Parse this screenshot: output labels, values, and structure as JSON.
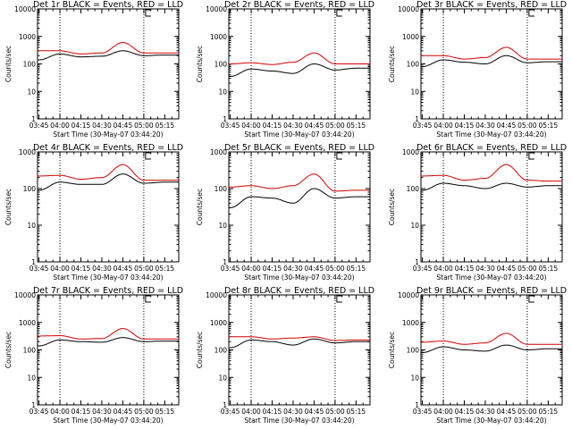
{
  "chart_data": [
    {
      "type": "line",
      "title": "Det 1r BLACK = Events, RED = LLD",
      "xlabel": "Start Time (30-May-07 03:44:20)",
      "ylabel": "Counts/sec",
      "yscale": "log",
      "ylim": [
        1,
        10000
      ],
      "x_ticks": [
        "03:45",
        "04:00",
        "04:15",
        "04:30",
        "04:45",
        "05:00",
        "05:15"
      ],
      "y_ticks": [
        "1",
        "10",
        "100",
        "1000",
        "10000"
      ],
      "markers": [
        "04:00",
        "05:00"
      ],
      "series": [
        {
          "name": "LLD",
          "color": "#d40000",
          "x": [
            "03:45",
            "04:00",
            "04:15",
            "04:30",
            "04:45",
            "05:00",
            "05:15"
          ],
          "values": [
            300,
            300,
            230,
            250,
            600,
            250,
            250
          ]
        },
        {
          "name": "Events",
          "color": "#000000",
          "x": [
            "03:45",
            "04:00",
            "04:15",
            "04:30",
            "04:45",
            "05:00",
            "05:15"
          ],
          "values": [
            140,
            230,
            180,
            190,
            300,
            200,
            210
          ]
        }
      ]
    },
    {
      "type": "line",
      "title": "Det 2r BLACK = Events, RED = LLD",
      "xlabel": "Start Time (30-May-07 03:44:20)",
      "ylabel": "Counts/sec",
      "yscale": "log",
      "ylim": [
        1,
        10000
      ],
      "x_ticks": [
        "03:45",
        "04:00",
        "04:15",
        "04:30",
        "04:45",
        "05:00",
        "05:15"
      ],
      "y_ticks": [
        "1",
        "10",
        "100",
        "1000",
        "10000"
      ],
      "markers": [
        "04:00",
        "05:00"
      ],
      "series": [
        {
          "name": "LLD",
          "color": "#d40000",
          "x": [
            "03:45",
            "04:00",
            "04:15",
            "04:30",
            "04:45",
            "05:00",
            "05:15"
          ],
          "values": [
            100,
            110,
            95,
            115,
            250,
            100,
            100
          ]
        },
        {
          "name": "Events",
          "color": "#000000",
          "x": [
            "03:45",
            "04:00",
            "04:15",
            "04:30",
            "04:45",
            "05:00",
            "05:15"
          ],
          "values": [
            35,
            65,
            55,
            45,
            100,
            60,
            70
          ]
        }
      ]
    },
    {
      "type": "line",
      "title": "Det 3r BLACK = Events, RED = LLD",
      "xlabel": "Start Time (30-May-07 03:44:20)",
      "ylabel": "Counts/sec",
      "yscale": "log",
      "ylim": [
        1,
        10000
      ],
      "x_ticks": [
        "03:45",
        "04:00",
        "04:15",
        "04:30",
        "04:45",
        "05:00",
        "05:15"
      ],
      "y_ticks": [
        "1",
        "10",
        "100",
        "1000",
        "10000"
      ],
      "markers": [
        "04:00",
        "05:00"
      ],
      "series": [
        {
          "name": "LLD",
          "color": "#d40000",
          "x": [
            "03:45",
            "04:00",
            "04:15",
            "04:30",
            "04:45",
            "05:00",
            "05:15"
          ],
          "values": [
            200,
            200,
            150,
            170,
            400,
            150,
            150
          ]
        },
        {
          "name": "Events",
          "color": "#000000",
          "x": [
            "03:45",
            "04:00",
            "04:15",
            "04:30",
            "04:45",
            "05:00",
            "05:15"
          ],
          "values": [
            80,
            140,
            115,
            100,
            200,
            110,
            120
          ]
        }
      ]
    },
    {
      "type": "line",
      "title": "Det 4r BLACK = Events, RED = LLD",
      "xlabel": "Start Time (30-May-07 03:44:20)",
      "ylabel": "Counts/sec",
      "yscale": "log",
      "ylim": [
        1,
        1000
      ],
      "x_ticks": [
        "03:45",
        "04:00",
        "04:15",
        "04:30",
        "04:45",
        "05:00",
        "05:15"
      ],
      "y_ticks": [
        "1",
        "10",
        "100",
        "1000"
      ],
      "markers": [
        "04:00",
        "05:00"
      ],
      "series": [
        {
          "name": "LLD",
          "color": "#d40000",
          "x": [
            "03:45",
            "04:00",
            "04:15",
            "04:30",
            "04:45",
            "05:00",
            "05:15"
          ],
          "values": [
            220,
            230,
            180,
            200,
            450,
            170,
            170
          ]
        },
        {
          "name": "Events",
          "color": "#000000",
          "x": [
            "03:45",
            "04:00",
            "04:15",
            "04:30",
            "04:45",
            "05:00",
            "05:15"
          ],
          "values": [
            90,
            150,
            130,
            130,
            250,
            140,
            150
          ]
        }
      ]
    },
    {
      "type": "line",
      "title": "Det 5r BLACK = Events, RED = LLD",
      "xlabel": "Start Time (30-May-07 03:44:20)",
      "ylabel": "Counts/sec",
      "yscale": "log",
      "ylim": [
        1,
        1000
      ],
      "x_ticks": [
        "03:45",
        "04:00",
        "04:15",
        "04:30",
        "04:45",
        "05:00",
        "05:15"
      ],
      "y_ticks": [
        "1",
        "10",
        "100",
        "1000"
      ],
      "markers": [
        "04:00",
        "05:00"
      ],
      "series": [
        {
          "name": "LLD",
          "color": "#d40000",
          "x": [
            "03:45",
            "04:00",
            "04:15",
            "04:30",
            "04:45",
            "05:00",
            "05:15"
          ],
          "values": [
            110,
            120,
            100,
            120,
            250,
            85,
            90
          ]
        },
        {
          "name": "Events",
          "color": "#000000",
          "x": [
            "03:45",
            "04:00",
            "04:15",
            "04:30",
            "04:45",
            "05:00",
            "05:15"
          ],
          "values": [
            30,
            60,
            55,
            40,
            100,
            55,
            60
          ]
        }
      ]
    },
    {
      "type": "line",
      "title": "Det 6r BLACK = Events, RED = LLD",
      "xlabel": "Start Time (30-May-07 03:44:20)",
      "ylabel": "Counts/sec",
      "yscale": "log",
      "ylim": [
        1,
        1000
      ],
      "x_ticks": [
        "03:45",
        "04:00",
        "04:15",
        "04:30",
        "04:45",
        "05:00",
        "05:15"
      ],
      "y_ticks": [
        "1",
        "10",
        "100",
        "1000"
      ],
      "markers": [
        "04:00",
        "05:00"
      ],
      "series": [
        {
          "name": "LLD",
          "color": "#d40000",
          "x": [
            "03:45",
            "04:00",
            "04:15",
            "04:30",
            "04:45",
            "05:00",
            "05:15"
          ],
          "values": [
            220,
            230,
            170,
            190,
            450,
            170,
            160
          ]
        },
        {
          "name": "Events",
          "color": "#000000",
          "x": [
            "03:45",
            "04:00",
            "04:15",
            "04:30",
            "04:45",
            "05:00",
            "05:15"
          ],
          "values": [
            90,
            140,
            120,
            100,
            140,
            110,
            120
          ]
        }
      ]
    },
    {
      "type": "line",
      "title": "Det 7r BLACK = Events, RED = LLD",
      "xlabel": "Start Time (30-May-07 03:44:20)",
      "ylabel": "Counts/sec",
      "yscale": "log",
      "ylim": [
        1,
        10000
      ],
      "x_ticks": [
        "03:45",
        "04:00",
        "04:15",
        "04:30",
        "04:45",
        "05:00",
        "05:15"
      ],
      "y_ticks": [
        "1",
        "10",
        "100",
        "1000",
        "10000"
      ],
      "markers": [
        "04:00",
        "05:00"
      ],
      "series": [
        {
          "name": "LLD",
          "color": "#d40000",
          "x": [
            "03:45",
            "04:00",
            "04:15",
            "04:30",
            "04:45",
            "05:00",
            "05:15"
          ],
          "values": [
            320,
            330,
            250,
            260,
            600,
            250,
            250
          ]
        },
        {
          "name": "Events",
          "color": "#000000",
          "x": [
            "03:45",
            "04:00",
            "04:15",
            "04:30",
            "04:45",
            "05:00",
            "05:15"
          ],
          "values": [
            140,
            230,
            200,
            190,
            280,
            200,
            210
          ]
        }
      ]
    },
    {
      "type": "line",
      "title": "Det 8r BLACK = Events, RED = LLD",
      "xlabel": "Start Time (30-May-07 03:44:20)",
      "ylabel": "Counts/sec",
      "yscale": "log",
      "ylim": [
        1,
        10000
      ],
      "x_ticks": [
        "03:45",
        "04:00",
        "04:15",
        "04:30",
        "04:45",
        "05:00",
        "05:15"
      ],
      "y_ticks": [
        "1",
        "10",
        "100",
        "1000",
        "10000"
      ],
      "markers": [
        "04:00",
        "05:00"
      ],
      "series": [
        {
          "name": "LLD",
          "color": "#d40000",
          "x": [
            "03:45",
            "04:00",
            "04:15",
            "04:30",
            "04:45",
            "05:00",
            "05:15"
          ],
          "values": [
            300,
            300,
            250,
            270,
            300,
            220,
            230
          ]
        },
        {
          "name": "Events",
          "color": "#000000",
          "x": [
            "03:45",
            "04:00",
            "04:15",
            "04:30",
            "04:45",
            "05:00",
            "05:15"
          ],
          "values": [
            120,
            230,
            200,
            150,
            250,
            180,
            200
          ]
        }
      ]
    },
    {
      "type": "line",
      "title": "Det 9r BLACK = Events, RED = LLD",
      "xlabel": "Start Time (30-May-07 03:44:20)",
      "ylabel": "Counts/sec",
      "yscale": "log",
      "ylim": [
        1,
        10000
      ],
      "x_ticks": [
        "03:45",
        "04:00",
        "04:15",
        "04:30",
        "04:45",
        "05:00",
        "05:15"
      ],
      "y_ticks": [
        "1",
        "10",
        "100",
        "1000",
        "10000"
      ],
      "markers": [
        "04:00",
        "05:00"
      ],
      "series": [
        {
          "name": "LLD",
          "color": "#d40000",
          "x": [
            "03:45",
            "04:00",
            "04:15",
            "04:30",
            "04:45",
            "05:00",
            "05:15"
          ],
          "values": [
            190,
            210,
            160,
            180,
            400,
            160,
            160
          ]
        },
        {
          "name": "Events",
          "color": "#000000",
          "x": [
            "03:45",
            "04:00",
            "04:15",
            "04:30",
            "04:45",
            "05:00",
            "05:15"
          ],
          "values": [
            80,
            130,
            100,
            90,
            150,
            100,
            110
          ]
        }
      ]
    }
  ]
}
